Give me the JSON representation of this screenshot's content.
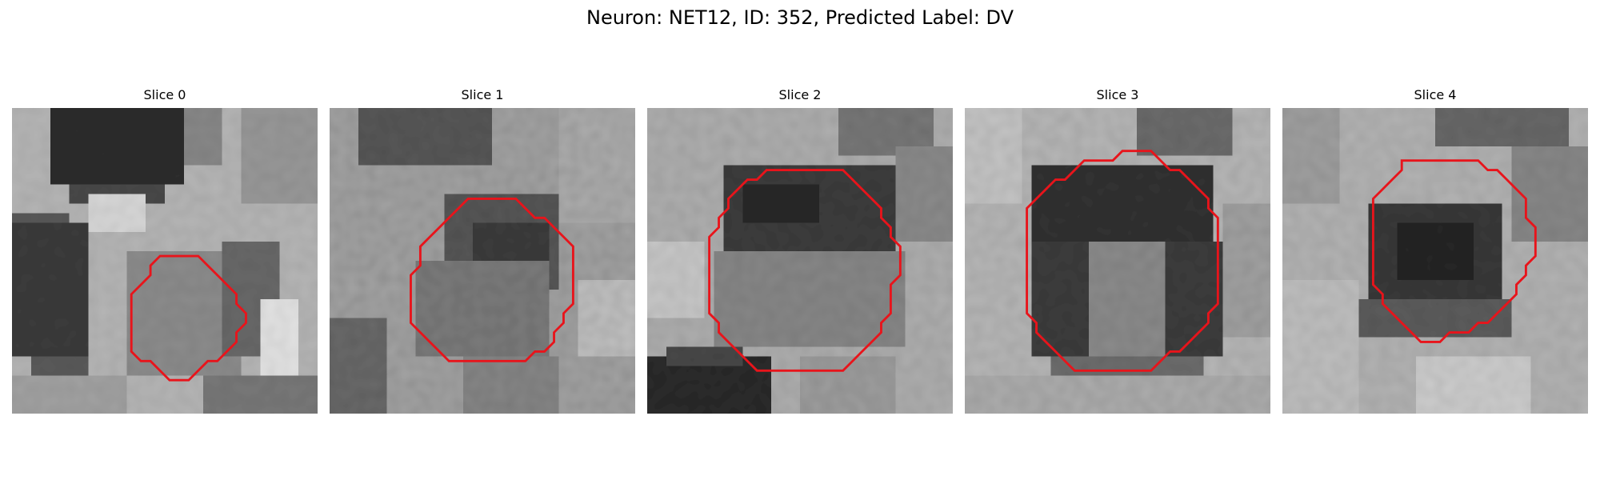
{
  "figure": {
    "title": "Neuron: NET12, ID: 352, Predicted Label: DV"
  },
  "panels": [
    {
      "label": "Slice 0"
    },
    {
      "label": "Slice 1"
    },
    {
      "label": "Slice 2"
    },
    {
      "label": "Slice 3"
    },
    {
      "label": "Slice 4"
    }
  ],
  "colors": {
    "roi_outline": "#e8141b",
    "background": "#ffffff"
  }
}
